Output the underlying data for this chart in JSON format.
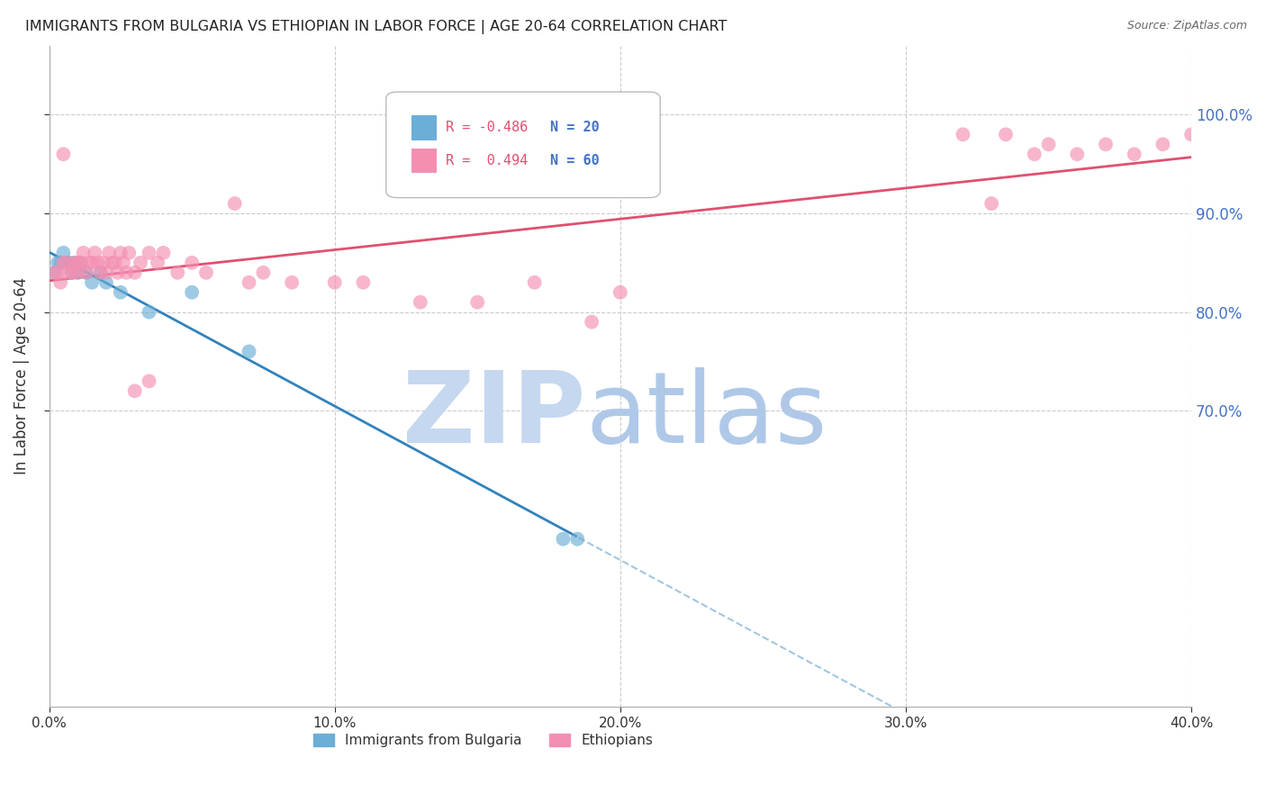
{
  "title": "IMMIGRANTS FROM BULGARIA VS ETHIOPIAN IN LABOR FORCE | AGE 20-64 CORRELATION CHART",
  "source": "Source: ZipAtlas.com",
  "ylabel": "In Labor Force | Age 20-64",
  "legend_label1": "Immigrants from Bulgaria",
  "legend_label2": "Ethiopians",
  "R1": -0.486,
  "N1": 20,
  "R2": 0.494,
  "N2": 60,
  "color_bulgaria": "#6baed6",
  "color_ethiopian": "#f48fb1",
  "color_regression_bulgaria": "#3182bd",
  "color_regression_ethiopian": "#e05070",
  "watermark_zip_color": "#c5d8f0",
  "watermark_atlas_color": "#b0c8e8",
  "bulgaria_x": [
    0.2,
    0.3,
    0.4,
    0.5,
    0.6,
    0.7,
    0.8,
    0.9,
    1.0,
    1.1,
    1.3,
    1.5,
    1.8,
    2.0,
    2.5,
    3.5,
    5.0,
    7.0,
    18.0,
    18.5
  ],
  "bulgaria_y": [
    84,
    85,
    85,
    86,
    85,
    85,
    84,
    85,
    84,
    85,
    84,
    83,
    84,
    83,
    82,
    80,
    82,
    76,
    57,
    57
  ],
  "ethiopian_x": [
    0.2,
    0.3,
    0.4,
    0.5,
    0.5,
    0.6,
    0.7,
    0.8,
    0.9,
    1.0,
    1.0,
    1.1,
    1.2,
    1.3,
    1.4,
    1.5,
    1.6,
    1.7,
    1.8,
    1.9,
    2.0,
    2.1,
    2.2,
    2.3,
    2.4,
    2.5,
    2.6,
    2.7,
    2.8,
    3.0,
    3.2,
    3.5,
    3.8,
    4.0,
    4.5,
    5.0,
    5.5,
    6.5,
    7.0,
    7.5,
    8.5,
    10.0,
    11.0,
    13.0,
    15.0,
    17.0,
    19.0,
    20.0,
    3.0,
    32.0,
    33.0,
    33.5,
    34.5,
    35.0,
    36.0,
    37.0,
    38.0,
    39.0,
    40.0,
    3.5
  ],
  "ethiopian_y": [
    84,
    84,
    83,
    96,
    85,
    85,
    84,
    84,
    85,
    85,
    84,
    85,
    86,
    84,
    85,
    85,
    86,
    85,
    84,
    85,
    84,
    86,
    85,
    85,
    84,
    86,
    85,
    84,
    86,
    84,
    85,
    86,
    85,
    86,
    84,
    85,
    84,
    91,
    83,
    84,
    83,
    83,
    83,
    81,
    81,
    83,
    79,
    82,
    72,
    98,
    91,
    98,
    96,
    97,
    96,
    97,
    96,
    97,
    98,
    73
  ]
}
